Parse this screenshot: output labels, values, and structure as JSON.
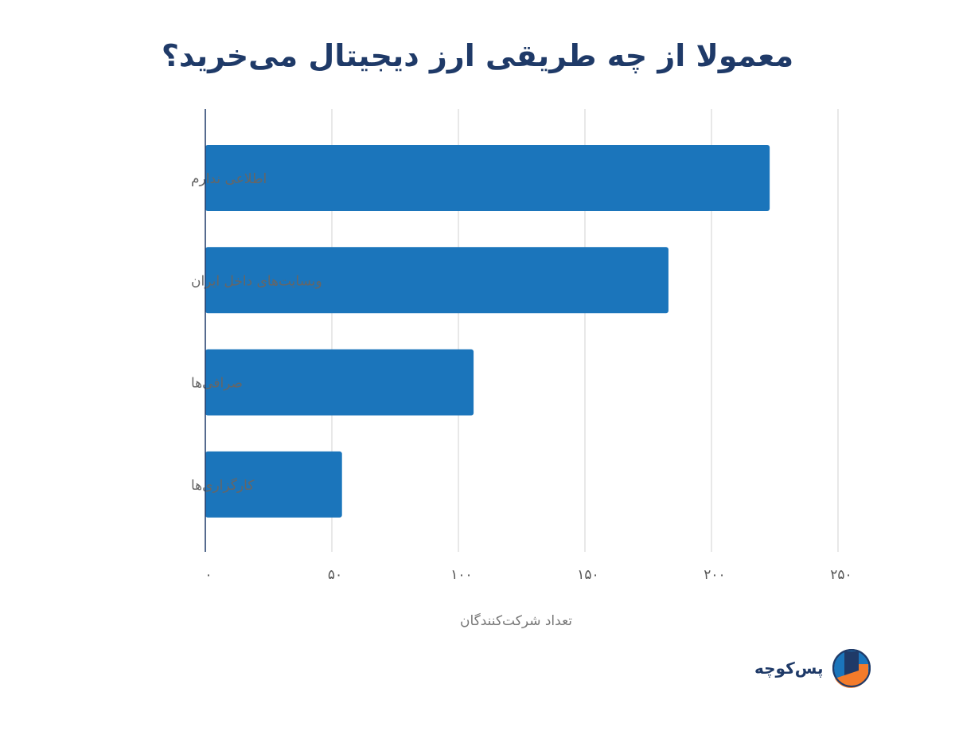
{
  "chart_data": {
    "type": "bar",
    "orientation": "horizontal",
    "title": "معمولا از چه طریقی ارز دیجیتال می‌خرید؟",
    "categories": [
      "اطلاعی ندارم",
      "وبسایت‌های داخل ایران",
      "صرافی‌ها",
      "کارگزاری‌ها"
    ],
    "values": [
      223,
      183,
      106,
      54
    ],
    "xlabel": "تعداد شرکت‌کنندگان",
    "ylabel": "",
    "xlim": [
      0,
      250
    ],
    "xticks": [
      0,
      50,
      100,
      150,
      200,
      250
    ],
    "xtick_labels": [
      "۰",
      "۵۰",
      "۱۰۰",
      "۱۵۰",
      "۲۰۰",
      "۲۵۰"
    ],
    "grid": true,
    "bar_color": "#1b75bb"
  },
  "brand": {
    "name": "پس‌کوچه"
  }
}
